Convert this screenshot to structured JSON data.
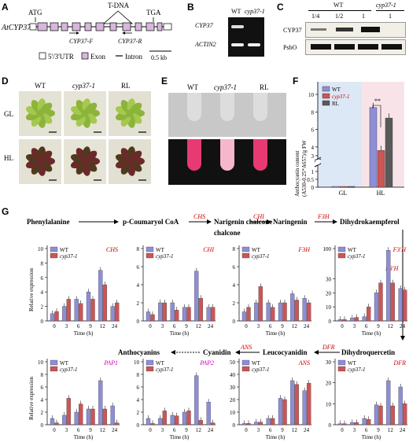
{
  "panels": {
    "A": {
      "letter": "A",
      "gene_label": "AtCYP37",
      "atg": "ATG",
      "tga": "TGA",
      "tdna": "T-DNA",
      "primer_f": "CYP37-F",
      "primer_r": "CYP37-R",
      "legend_utr": "5'/3'UTR",
      "legend_exon": "Exon",
      "legend_intron": "Intron",
      "scale": "0.5 kb"
    },
    "B": {
      "letter": "B",
      "col_wt": "WT",
      "col_mut": "cyp37-1",
      "row1": "CYP37",
      "row2": "ACTIN2"
    },
    "C": {
      "letter": "C",
      "wt_label": "WT",
      "mut_label": "cyp37-1",
      "lanes": [
        "1/4",
        "1/2",
        "1",
        "1"
      ],
      "row1": "CYP37",
      "row2": "PsbO"
    },
    "D": {
      "letter": "D",
      "cols": [
        "WT",
        "cyp37-1",
        "RL"
      ],
      "rows": [
        "GL",
        "HL"
      ]
    },
    "E": {
      "letter": "E",
      "cols": [
        "WT",
        "cyp37-1",
        "RL"
      ],
      "rows": [
        "GL",
        "HL"
      ]
    },
    "F": {
      "letter": "F",
      "legend": [
        "WT",
        "cyp37-1",
        "RL"
      ],
      "colors": [
        "#8e8ed6",
        "#cc5555",
        "#5a5a5a"
      ],
      "sig": "**",
      "ylabel_line1": "Anthocyanin content",
      "ylabel_line2": "(A530-0.25*A657)/g FW"
    },
    "G": {
      "letter": "G",
      "pathway_top": [
        "Phenylalanine",
        "p-Coumaryol CoA",
        "Narigenin chalcone",
        "Naringenin",
        "Dihydrokaempferol"
      ],
      "enzymes_top": [
        "CHS",
        "CHI",
        "F3H"
      ],
      "side_enzyme": "F3'H",
      "pathway_bottom": [
        "Anthocyanins",
        "Cyanidin",
        "Leucocyanidin",
        "Dihydroquercetin"
      ],
      "enzymes_bottom": [
        "ANS",
        "DFR"
      ],
      "ylabel": "Relative expression",
      "xlabel": "Time (h)",
      "legend": [
        "WT",
        "cyp37-1"
      ]
    }
  },
  "chart_data": [
    {
      "type": "bar",
      "title": "",
      "categories": [
        "GL",
        "HL"
      ],
      "ylabel": "Anthocyanin content (A530-0.25*A657)/g FW",
      "ylim": [
        0,
        10
      ],
      "axis_break": [
        1,
        3
      ],
      "yticks": [
        0,
        0.5,
        1,
        3,
        4,
        6,
        8,
        10
      ],
      "series": [
        {
          "name": "WT",
          "values": [
            0.05,
            8.5
          ]
        },
        {
          "name": "cyp37-1",
          "values": [
            0.05,
            3.6
          ]
        },
        {
          "name": "RL",
          "values": [
            0.05,
            7.3
          ]
        }
      ]
    },
    {
      "type": "bar",
      "title": "CHS",
      "xlabel": "Time (h)",
      "ylabel": "Relative expression",
      "categories": [
        "0",
        "3",
        "6",
        "9",
        "12",
        "24"
      ],
      "ylim": [
        0,
        10
      ],
      "yticks": [
        0,
        2,
        4,
        6,
        8,
        10
      ],
      "series": [
        {
          "name": "WT",
          "values": [
            1,
            2,
            3,
            4,
            7,
            2
          ]
        },
        {
          "name": "cyp37-1",
          "values": [
            1.3,
            3,
            2.4,
            3,
            5,
            2.5
          ]
        }
      ]
    },
    {
      "type": "bar",
      "title": "CHI",
      "xlabel": "Time (h)",
      "categories": [
        "0",
        "3",
        "6",
        "9",
        "12",
        "24"
      ],
      "ylim": [
        0,
        8
      ],
      "yticks": [
        0,
        2,
        4,
        6,
        8
      ],
      "series": [
        {
          "name": "WT",
          "values": [
            1,
            2,
            2,
            1.5,
            5.5,
            1.5
          ]
        },
        {
          "name": "cyp37-1",
          "values": [
            0.7,
            2,
            1.2,
            1.5,
            2.5,
            1.5
          ]
        }
      ]
    },
    {
      "type": "bar",
      "title": "F3H",
      "xlabel": "Time (h)",
      "categories": [
        "0",
        "3",
        "6",
        "9",
        "12",
        "24"
      ],
      "ylim": [
        0,
        8
      ],
      "yticks": [
        0,
        2,
        4,
        6,
        8
      ],
      "series": [
        {
          "name": "WT",
          "values": [
            1,
            2,
            2,
            2,
            3,
            2.5
          ]
        },
        {
          "name": "cyp37-1",
          "values": [
            1.5,
            3.8,
            1.5,
            2,
            2.3,
            2
          ]
        }
      ]
    },
    {
      "type": "bar",
      "title": "F3'H",
      "xlabel": "Time (h)",
      "categories": [
        "0",
        "3",
        "6",
        "9",
        "12",
        "24"
      ],
      "ylim": [
        0,
        100
      ],
      "yticks": [
        0,
        10,
        20,
        30,
        100
      ],
      "axis_break": [
        35,
        50
      ],
      "series": [
        {
          "name": "WT",
          "values": [
            1,
            2,
            3,
            20,
            95,
            23
          ]
        },
        {
          "name": "cyp37-1",
          "values": [
            1,
            2.5,
            10,
            27,
            27,
            22
          ]
        }
      ]
    },
    {
      "type": "bar",
      "title": "PAP1",
      "xlabel": "Time (h)",
      "ylabel": "Relative expression",
      "categories": [
        "0",
        "3",
        "6",
        "9",
        "12",
        "24"
      ],
      "ylim": [
        0,
        10
      ],
      "yticks": [
        0,
        2,
        4,
        6,
        8,
        10
      ],
      "series": [
        {
          "name": "WT",
          "values": [
            1,
            1.5,
            2,
            2.5,
            7,
            3
          ]
        },
        {
          "name": "cyp37-1",
          "values": [
            0.3,
            4.2,
            3.3,
            2.5,
            2.5,
            0.3
          ]
        }
      ]
    },
    {
      "type": "bar",
      "title": "PAP2",
      "xlabel": "Time (h)",
      "categories": [
        "0",
        "3",
        "6",
        "9",
        "12",
        "24"
      ],
      "ylim": [
        0,
        10
      ],
      "yticks": [
        0,
        2,
        4,
        6,
        8,
        10
      ],
      "series": [
        {
          "name": "WT",
          "values": [
            1,
            1,
            1.5,
            2,
            7.8,
            3.6
          ]
        },
        {
          "name": "cyp37-1",
          "values": [
            0.2,
            2.2,
            1.4,
            2.2,
            0.7,
            0.3
          ]
        }
      ]
    },
    {
      "type": "bar",
      "title": "ANS",
      "xlabel": "Time (h)",
      "categories": [
        "0",
        "3",
        "6",
        "9",
        "12",
        "24"
      ],
      "ylim": [
        0,
        50
      ],
      "yticks": [
        0,
        10,
        20,
        30,
        40,
        50
      ],
      "series": [
        {
          "name": "WT",
          "values": [
            1,
            2,
            5,
            21,
            35,
            27
          ]
        },
        {
          "name": "cyp37-1",
          "values": [
            1,
            2,
            5,
            20,
            32,
            33
          ]
        }
      ]
    },
    {
      "type": "bar",
      "title": "DFR",
      "xlabel": "Time (h)",
      "categories": [
        "0",
        "3",
        "6",
        "9",
        "12",
        "24"
      ],
      "ylim": [
        0,
        30
      ],
      "yticks": [
        0,
        10,
        20,
        30
      ],
      "series": [
        {
          "name": "WT",
          "values": [
            0.5,
            1,
            3,
            9.5,
            21,
            18
          ]
        },
        {
          "name": "cyp37-1",
          "values": [
            0.5,
            1,
            2.5,
            9,
            9,
            10
          ]
        }
      ]
    }
  ]
}
